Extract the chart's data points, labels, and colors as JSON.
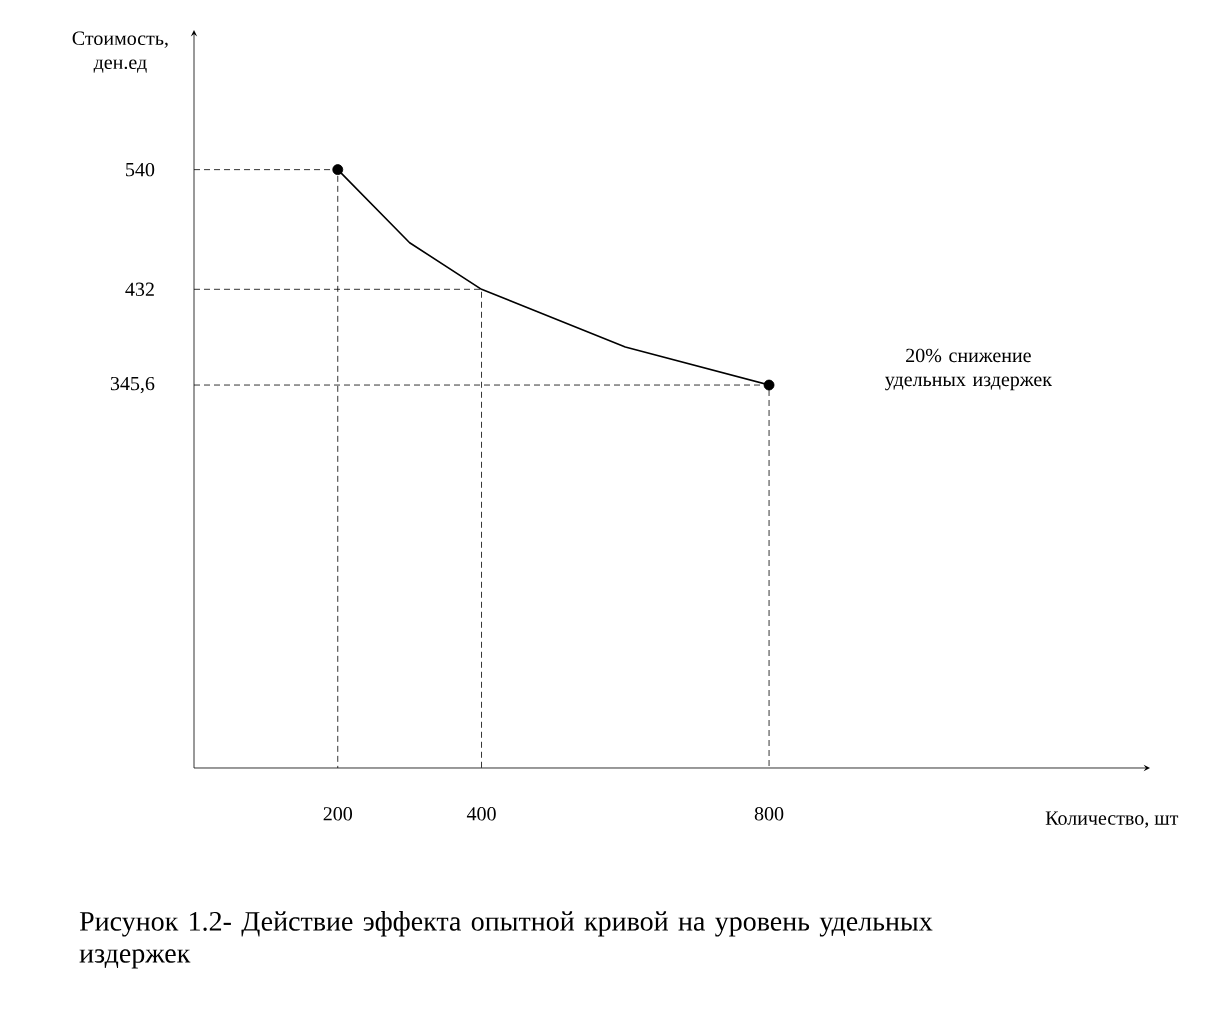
{
  "chart_data": {
    "type": "line",
    "xlabel": "Количество, шт",
    "ylabel": "Стоимость, ден.ед",
    "xlim": [
      0,
      1330
    ],
    "ylim": [
      0,
      666
    ],
    "xticks": [
      200,
      400,
      800
    ],
    "yticks": [
      540,
      432,
      {
        "value": 345.6,
        "label": "345,6"
      }
    ],
    "series": [
      {
        "color": "#000000",
        "line_style": "solid",
        "marker": "none",
        "x": [
          200,
          300,
          400,
          600,
          800
        ],
        "values": [
          540,
          474,
          432,
          380,
          345.6
        ]
      },
      {
        "type": "scatter",
        "color": "#000000",
        "marker": "circle",
        "x": [
          200,
          800
        ],
        "values": [
          540,
          345.6
        ]
      },
      {
        "color": "#000000",
        "line_style": "dashed",
        "marker": "none",
        "x": [
          0,
          200,
          200
        ],
        "values": [
          540,
          540,
          0
        ]
      },
      {
        "color": "#000000",
        "line_style": "dashed",
        "marker": "none",
        "x": [
          0,
          400,
          400
        ],
        "values": [
          432,
          432,
          0
        ]
      },
      {
        "color": "#000000",
        "line_style": "dashed",
        "marker": "none",
        "x": [
          0,
          800,
          800
        ],
        "values": [
          345.6,
          345.6,
          0
        ]
      }
    ],
    "annotations": [
      "20% снижение удельных издержек",
      "Рисунок 1.2- Действие эффекта опытной кривой на уровень удельных издержек"
    ]
  }
}
